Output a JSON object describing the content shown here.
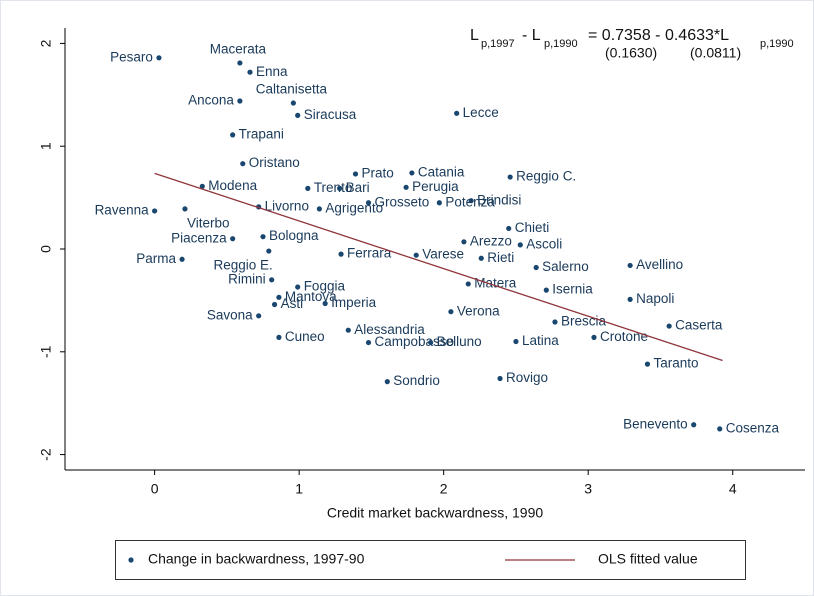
{
  "chart_data": {
    "type": "scatter",
    "xlabel": "Credit market backwardness, 1990",
    "xlim": [
      -0.62,
      4.5
    ],
    "ylim": [
      -2.15,
      2.15
    ],
    "xticks": [
      0,
      1,
      2,
      3,
      4
    ],
    "yticks": [
      -2,
      -1,
      0,
      1,
      2
    ],
    "grid": false,
    "equation": {
      "lhs1": "L",
      "sub1": "p,1997",
      "lhs2": "- L",
      "sub2": "p,1990",
      "rhs": "= 0.7358 - 0.4633*L",
      "sub3": "p,1990",
      "se": [
        "(0.1630)",
        "(0.0811)"
      ]
    },
    "series": [
      {
        "name": "Change in backwardness, 1997-90",
        "color": "#1a476f",
        "labels": [
          "Pesaro",
          "Macerata",
          "Enna",
          "Caltanisetta",
          "Ancona",
          "Siracusa",
          "Lecce",
          "Trapani",
          "Oristano",
          "Prato",
          "Catania",
          "Reggio C.",
          "Modena",
          "Trento",
          "Bari",
          "Perugia",
          "Brindisi",
          "Ravenna",
          "Livorno",
          "Agrigento",
          "Grosseto",
          "Potenza",
          "Viterbo",
          "Piacenza",
          "Bologna",
          "Ascoli",
          "Arezzo",
          "Chieti",
          "Parma",
          "Reggio E.",
          "Rimini",
          "Foggia",
          "Mantova",
          "Asti",
          "Savona",
          "Cuneo",
          "Imperia",
          "Alessandria",
          "Campobasso",
          "Sondrio",
          "Rovigo",
          "Belluno",
          "Latina",
          "Verona",
          "Brescia",
          "Isernia",
          "Salerno",
          "Rieti",
          "Varese",
          "Avellino",
          "Napoli",
          "Caserta",
          "Crotone",
          "Taranto",
          "Benevento",
          "Cosenza",
          "Ferrara",
          "Matera"
        ],
        "x": [
          0.03,
          0.59,
          0.66,
          0.96,
          0.59,
          0.99,
          2.09,
          0.54,
          0.61,
          1.39,
          1.78,
          2.46,
          0.33,
          1.06,
          1.28,
          1.74,
          2.19,
          0.0,
          0.72,
          1.14,
          1.48,
          1.97,
          0.21,
          0.54,
          0.75,
          2.53,
          2.14,
          2.45,
          0.19,
          0.79,
          0.81,
          0.99,
          0.86,
          0.83,
          0.72,
          0.86,
          1.18,
          1.34,
          1.48,
          1.61,
          2.39,
          1.91,
          2.5,
          2.05,
          2.77,
          2.71,
          2.64,
          2.26,
          1.81,
          3.29,
          3.29,
          3.56,
          3.04,
          3.41,
          3.73,
          3.91,
          1.29,
          2.17
        ],
        "values": [
          1.86,
          1.81,
          1.72,
          1.42,
          1.44,
          1.3,
          1.32,
          1.11,
          0.83,
          0.73,
          0.74,
          0.7,
          0.61,
          0.59,
          0.59,
          0.6,
          0.47,
          0.37,
          0.41,
          0.39,
          0.45,
          0.45,
          0.39,
          0.1,
          0.12,
          0.04,
          0.07,
          0.2,
          -0.1,
          -0.02,
          -0.3,
          -0.37,
          -0.47,
          -0.54,
          -0.65,
          -0.86,
          -0.53,
          -0.79,
          -0.91,
          -1.29,
          -1.26,
          -0.91,
          -0.9,
          -0.61,
          -0.71,
          -0.4,
          -0.18,
          -0.09,
          -0.06,
          -0.16,
          -0.49,
          -0.75,
          -0.86,
          -1.12,
          -1.71,
          -1.75,
          -0.05,
          -0.34
        ]
      },
      {
        "name": "OLS fitted value",
        "color": "#90353b",
        "type": "line",
        "x": [
          0,
          3.93
        ],
        "values": [
          0.7358,
          -1.085
        ]
      }
    ]
  }
}
